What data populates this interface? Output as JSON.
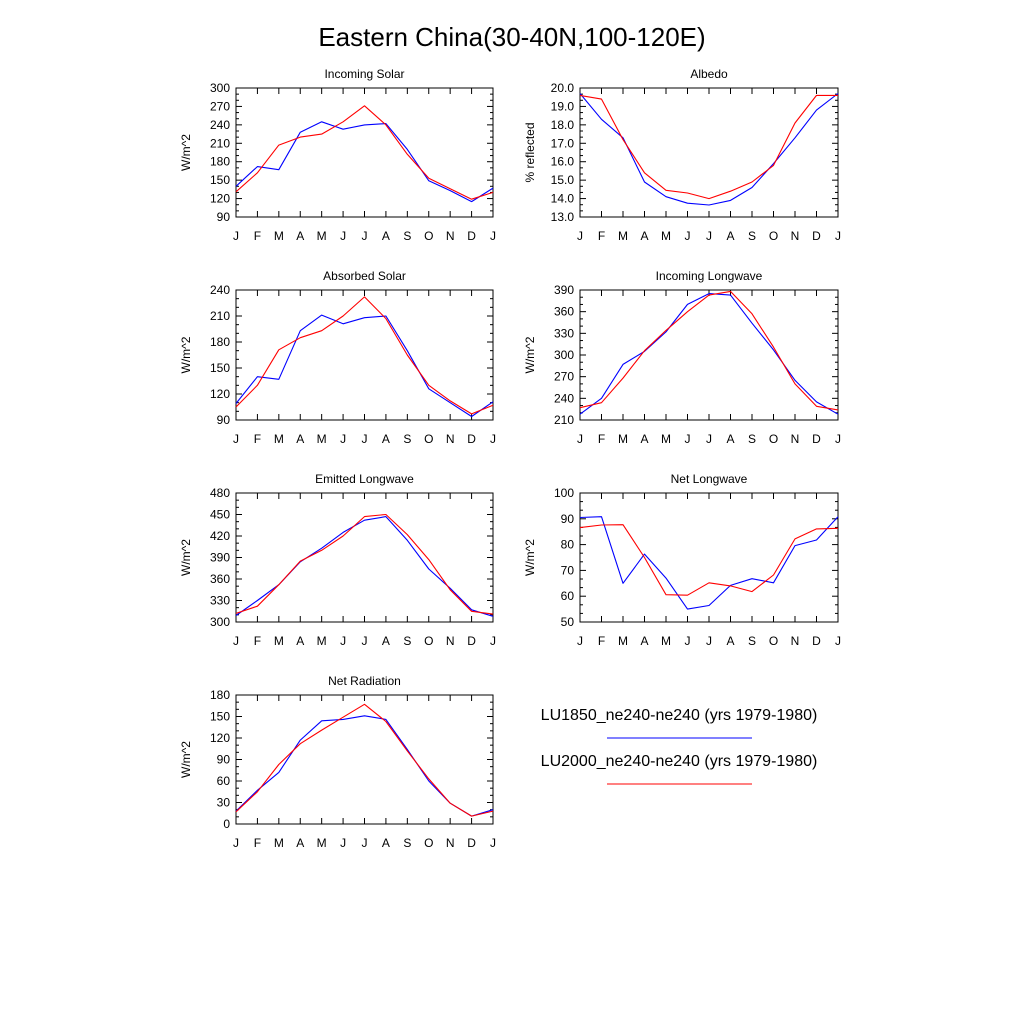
{
  "figure": {
    "title": "Eastern China(30-40N,100-120E)"
  },
  "colors": {
    "series_1": "#0000ff",
    "series_2": "#ff0000",
    "axis": "#000000"
  },
  "legend": [
    {
      "label": "LU1850_ne240-ne240 (yrs 1979-1980)",
      "color": "#0000ff"
    },
    {
      "label": "LU2000_ne240-ne240 (yrs 1979-1980)",
      "color": "#ff0000"
    }
  ],
  "chart_data": [
    {
      "type": "line",
      "title": "Incoming Solar",
      "ylabel": "W/m^2",
      "categories": [
        "J",
        "F",
        "M",
        "A",
        "M",
        "J",
        "J",
        "A",
        "S",
        "O",
        "N",
        "D",
        "J"
      ],
      "ylim": [
        90,
        300
      ],
      "yticks": [
        "90",
        "120",
        "150",
        "180",
        "210",
        "240",
        "270",
        "300"
      ],
      "series": [
        {
          "values": [
            140,
            172,
            167,
            228,
            245,
            233,
            240,
            242,
            200,
            149,
            133,
            115,
            137
          ]
        },
        {
          "values": [
            131,
            162,
            207,
            220,
            225,
            245,
            271,
            240,
            192,
            153,
            136,
            119,
            130
          ]
        }
      ]
    },
    {
      "type": "line",
      "title": "Albedo",
      "ylabel": "% reflected",
      "categories": [
        "J",
        "F",
        "M",
        "A",
        "M",
        "J",
        "J",
        "A",
        "S",
        "O",
        "N",
        "D",
        "J"
      ],
      "ylim": [
        13.0,
        20.0
      ],
      "yticks": [
        "13.0",
        "14.0",
        "15.0",
        "16.0",
        "17.0",
        "18.0",
        "19.0",
        "20.0"
      ],
      "series": [
        {
          "values": [
            19.7,
            18.3,
            17.3,
            14.9,
            14.1,
            13.75,
            13.65,
            13.9,
            14.6,
            15.9,
            17.3,
            18.8,
            19.7
          ]
        },
        {
          "values": [
            19.6,
            19.4,
            17.2,
            15.4,
            14.45,
            14.3,
            14.0,
            14.4,
            14.9,
            15.8,
            18.1,
            19.6,
            19.6
          ]
        }
      ]
    },
    {
      "type": "line",
      "title": "Absorbed Solar",
      "ylabel": "W/m^2",
      "categories": [
        "J",
        "F",
        "M",
        "A",
        "M",
        "J",
        "J",
        "A",
        "S",
        "O",
        "N",
        "D",
        "J"
      ],
      "ylim": [
        90,
        240
      ],
      "yticks": [
        "90",
        "120",
        "150",
        "180",
        "210",
        "240"
      ],
      "series": [
        {
          "values": [
            109,
            140,
            137,
            193,
            211,
            201,
            208,
            210,
            170,
            126,
            110,
            94,
            111
          ]
        },
        {
          "values": [
            105,
            130,
            171,
            185,
            193,
            210,
            232,
            207,
            165,
            130,
            112,
            97,
            107
          ]
        }
      ]
    },
    {
      "type": "line",
      "title": "Incoming Longwave",
      "ylabel": "W/m^2",
      "categories": [
        "J",
        "F",
        "M",
        "A",
        "M",
        "J",
        "J",
        "A",
        "S",
        "O",
        "N",
        "D",
        "J"
      ],
      "ylim": [
        210,
        390
      ],
      "yticks": [
        "210",
        "240",
        "270",
        "300",
        "330",
        "360",
        "390"
      ],
      "series": [
        {
          "values": [
            218,
            240,
            287,
            305,
            332,
            370,
            385,
            383,
            344,
            307,
            265,
            235,
            218
          ]
        },
        {
          "values": [
            227,
            234,
            268,
            306,
            334,
            360,
            383,
            388,
            357,
            311,
            260,
            229,
            224
          ]
        }
      ]
    },
    {
      "type": "line",
      "title": "Emitted Longwave",
      "ylabel": "W/m^2",
      "categories": [
        "J",
        "F",
        "M",
        "A",
        "M",
        "J",
        "J",
        "A",
        "S",
        "O",
        "N",
        "D",
        "J"
      ],
      "ylim": [
        300,
        480
      ],
      "yticks": [
        "300",
        "330",
        "360",
        "390",
        "420",
        "450",
        "480"
      ],
      "series": [
        {
          "values": [
            309,
            330,
            352,
            384,
            403,
            425,
            442,
            447,
            414,
            374,
            347,
            317,
            308
          ]
        },
        {
          "values": [
            312,
            322,
            352,
            385,
            400,
            420,
            447,
            450,
            422,
            387,
            345,
            315,
            311
          ]
        }
      ]
    },
    {
      "type": "line",
      "title": "Net Longwave",
      "ylabel": "W/m^2",
      "categories": [
        "J",
        "F",
        "M",
        "A",
        "M",
        "J",
        "J",
        "A",
        "S",
        "O",
        "N",
        "D",
        "J"
      ],
      "ylim": [
        50,
        100
      ],
      "yticks": [
        "50",
        "60",
        "70",
        "80",
        "90",
        "100"
      ],
      "series": [
        {
          "values": [
            90.5,
            90.8,
            65.0,
            76.3,
            67.0,
            55.0,
            56.4,
            64.2,
            66.8,
            65.2,
            79.6,
            81.8,
            90.8
          ]
        },
        {
          "values": [
            86.6,
            87.6,
            87.7,
            75.0,
            60.6,
            60.4,
            65.2,
            64.0,
            61.8,
            68.2,
            82.2,
            86.1,
            86.3
          ]
        }
      ]
    },
    {
      "type": "line",
      "title": "Net Radiation",
      "ylabel": "W/m^2",
      "categories": [
        "J",
        "F",
        "M",
        "A",
        "M",
        "J",
        "J",
        "A",
        "S",
        "O",
        "N",
        "D",
        "J"
      ],
      "ylim": [
        0,
        180
      ],
      "yticks": [
        "0",
        "30",
        "60",
        "90",
        "120",
        "150",
        "180"
      ],
      "series": [
        {
          "values": [
            18,
            47,
            72,
            117,
            144,
            146,
            151,
            146,
            104,
            60,
            29,
            11,
            20
          ]
        },
        {
          "values": [
            17,
            45,
            83,
            112,
            131,
            149,
            167,
            143,
            102,
            63,
            29,
            11,
            18
          ]
        }
      ]
    }
  ]
}
